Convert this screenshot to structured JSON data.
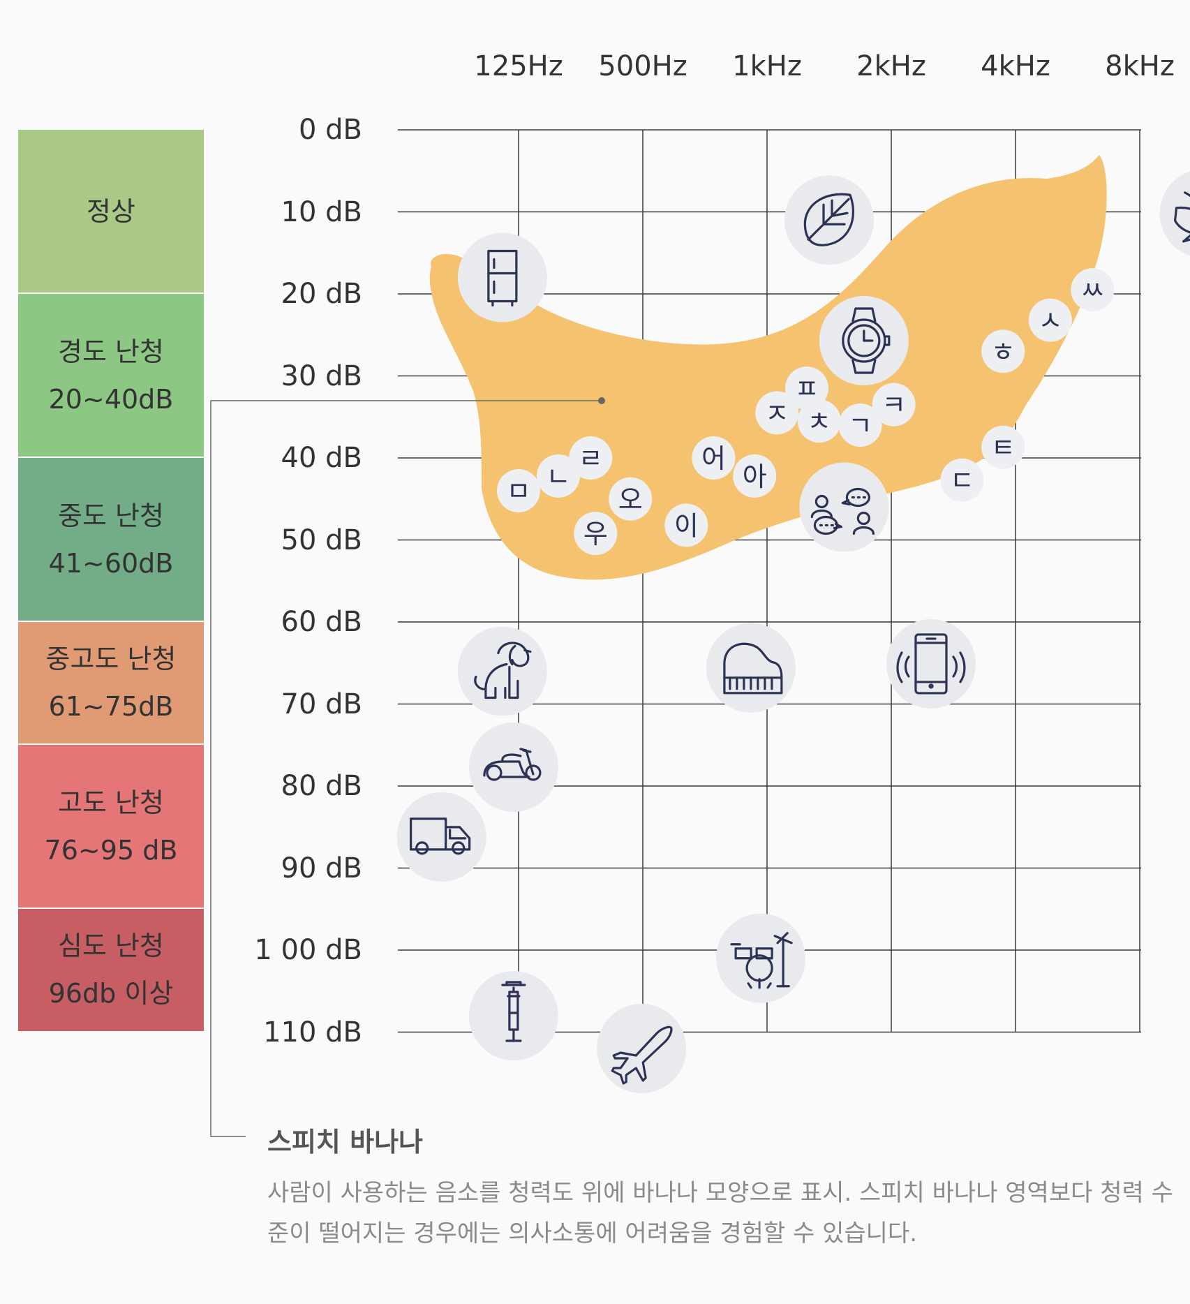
{
  "chart_data": {
    "type": "audiogram",
    "title": "스피치 바나나",
    "description": "사람이 사용하는 음소를 청력도 위에 바나나 모양으로 표시. 스피치 바나나 영역보다 청력 수준이 떨어지는 경우에는 의사소통에 어려움을 경험할 수 있습니다.",
    "x_ticks": [
      "125Hz",
      "500Hz",
      "1kHz",
      "2kHz",
      "4kHz",
      "8kHz"
    ],
    "y_ticks": [
      "0 dB",
      "10 dB",
      "20 dB",
      "30 dB",
      "40 dB",
      "50 dB",
      "60 dB",
      "70 dB",
      "80 dB",
      "90 dB",
      "1 00 dB",
      "110 dB"
    ],
    "ylim": [
      0,
      110
    ],
    "bands": [
      {
        "name": "정상",
        "range": "",
        "from": 0,
        "to": 20,
        "color": "#abc986"
      },
      {
        "name": "경도 난청",
        "range": "20~40dB",
        "from": 20,
        "to": 40,
        "color": "#8cc783"
      },
      {
        "name": "중도 난청",
        "range": "41~60dB",
        "from": 40,
        "to": 60,
        "color": "#72ad87"
      },
      {
        "name": "중고도 난청",
        "range": "61~75dB",
        "from": 60,
        "to": 75,
        "color": "#e19b74"
      },
      {
        "name": "고도 난청",
        "range": "76~95 dB",
        "from": 75,
        "to": 95,
        "color": "#e47677"
      },
      {
        "name": "심도 난청",
        "range": "96db 이상",
        "from": 95,
        "to": 110,
        "color": "#c65e63"
      }
    ],
    "phonemes": [
      {
        "label": "ㅁ",
        "x": 0,
        "y": 44
      },
      {
        "label": "ㄴ",
        "x": 0.32,
        "y": 42.2
      },
      {
        "label": "ㄹ",
        "x": 0.58,
        "y": 40
      },
      {
        "label": "오",
        "x": 0.9,
        "y": 45
      },
      {
        "label": "우",
        "x": 0.62,
        "y": 49.2
      },
      {
        "label": "이",
        "x": 1.35,
        "y": 48.2
      },
      {
        "label": "어",
        "x": 1.57,
        "y": 40
      },
      {
        "label": "아",
        "x": 1.9,
        "y": 42.2
      },
      {
        "label": "ㅈ",
        "x": 2.08,
        "y": 34.5
      },
      {
        "label": "ㅍ",
        "x": 2.32,
        "y": 31.5
      },
      {
        "label": "ㅊ",
        "x": 2.42,
        "y": 35.5
      },
      {
        "label": "ㄱ",
        "x": 2.75,
        "y": 36
      },
      {
        "label": "ㅋ",
        "x": 3.02,
        "y": 33.5
      },
      {
        "label": "ㅎ",
        "x": 3.9,
        "y": 27
      },
      {
        "label": "ㅅ",
        "x": 4.28,
        "y": 23.2
      },
      {
        "label": "ㅆ",
        "x": 4.62,
        "y": 19.5
      },
      {
        "label": "ㄷ",
        "x": 3.57,
        "y": 42.7
      },
      {
        "label": "ㅌ",
        "x": 3.9,
        "y": 38.7
      }
    ],
    "sound_icons": [
      {
        "name": "leaf-icon",
        "x": 2.5,
        "y": 11
      },
      {
        "name": "bird-icon",
        "x": 5.52,
        "y": 10.2
      },
      {
        "name": "fridge-icon",
        "x": -0.13,
        "y": 18
      },
      {
        "name": "watch-icon",
        "x": 2.78,
        "y": 25.7
      },
      {
        "name": "conversation-icon",
        "x": 2.62,
        "y": 46
      },
      {
        "name": "dog-icon",
        "x": -0.13,
        "y": 66
      },
      {
        "name": "piano-icon",
        "x": 1.87,
        "y": 65.6
      },
      {
        "name": "phone-icon",
        "x": 3.32,
        "y": 65.1
      },
      {
        "name": "scooter-icon",
        "x": -0.04,
        "y": 77.7
      },
      {
        "name": "truck-icon",
        "x": -0.62,
        "y": 86.2
      },
      {
        "name": "drums-icon",
        "x": 1.95,
        "y": 101
      },
      {
        "name": "jackhammer-icon",
        "x": -0.04,
        "y": 108
      },
      {
        "name": "airplane-icon",
        "x": 0.99,
        "y": 112
      }
    ]
  }
}
